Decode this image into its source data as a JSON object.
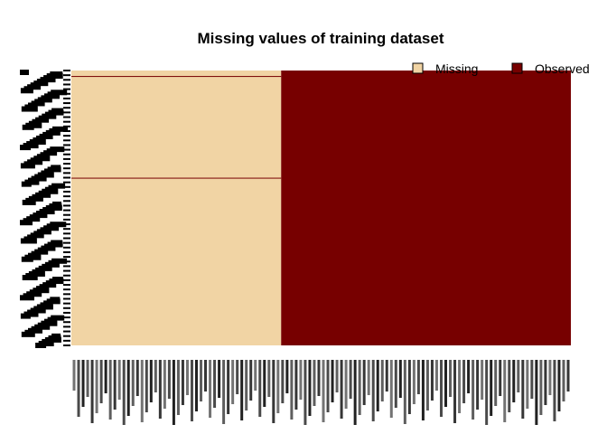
{
  "chart_data": {
    "type": "heatmap",
    "title": "Missing values of training dataset",
    "legend": [
      {
        "label": "Missing",
        "color": "#F1D4A4"
      },
      {
        "label": "Observed",
        "color": "#770000"
      }
    ],
    "legend_position": "top-right",
    "colors": {
      "missing": "#F1D4A4",
      "observed": "#770000"
    },
    "missing_fraction_of_columns": 0.42,
    "observed_rows_in_missing_columns_fraction": [
      0.02,
      0.39
    ]
  }
}
